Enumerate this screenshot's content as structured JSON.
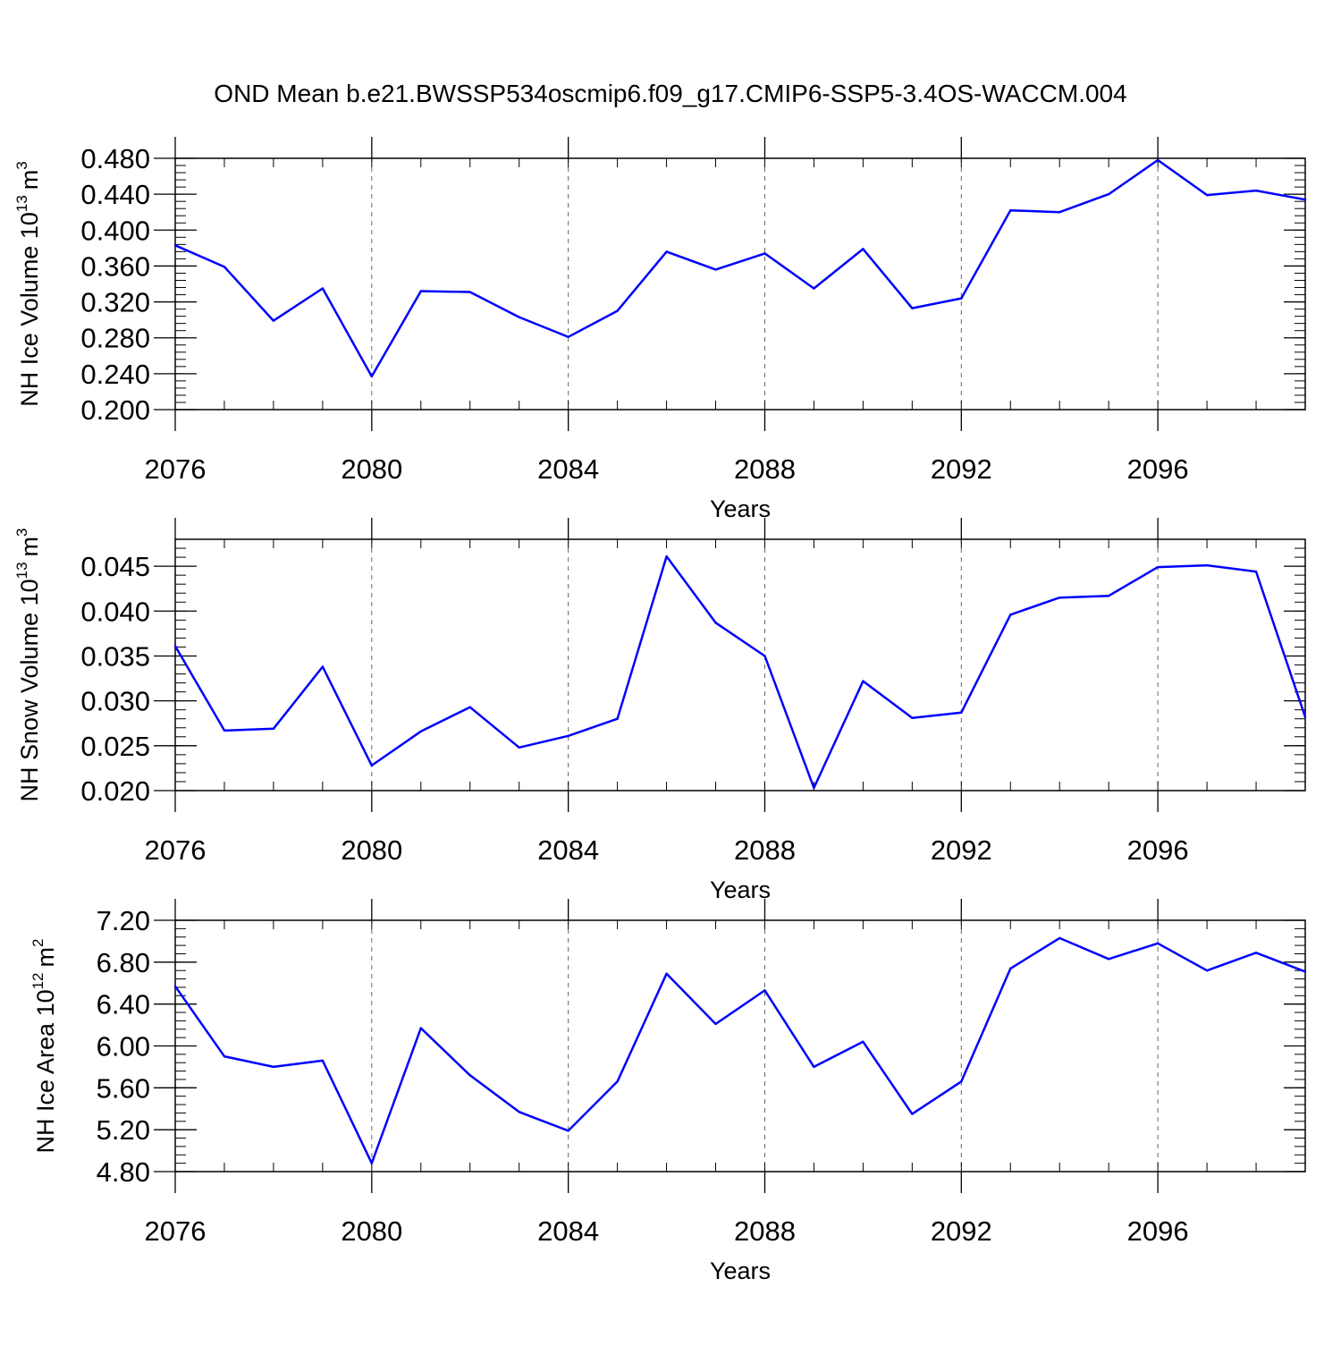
{
  "figure": {
    "title": "OND Mean b.e21.BWSSP534oscmip6.f09_g17.CMIP6-SSP5-3.4OS-WACCM.004"
  },
  "colors": {
    "line": "#0000ff",
    "axis": "#000000",
    "grid": "#666666"
  },
  "chart_data": [
    {
      "type": "line",
      "title": "",
      "xlabel": "Years",
      "ylabel_text": "NH Ice Volume 10",
      "ylabel_sup": "13",
      "ylabel_unit": "m",
      "ylabel_unit_sup": "3",
      "xlim": [
        2076,
        2099
      ],
      "ylim": [
        0.2,
        0.48
      ],
      "yticks": [
        0.2,
        0.24,
        0.28,
        0.32,
        0.36,
        0.4,
        0.44,
        0.48
      ],
      "ytick_labels": [
        "0.200",
        "0.240",
        "0.280",
        "0.320",
        "0.360",
        "0.400",
        "0.440",
        "0.480"
      ],
      "xticks": [
        2076,
        2080,
        2084,
        2088,
        2092,
        2096
      ],
      "xtick_labels": [
        "2076",
        "2080",
        "2084",
        "2088",
        "2092",
        "2096"
      ],
      "grid": "vertical dashed at major x ticks",
      "x": [
        2076,
        2077,
        2078,
        2079,
        2080,
        2081,
        2082,
        2083,
        2084,
        2085,
        2086,
        2087,
        2088,
        2089,
        2090,
        2091,
        2092,
        2093,
        2094,
        2095,
        2096,
        2097,
        2098,
        2099
      ],
      "values": [
        0.383,
        0.359,
        0.299,
        0.335,
        0.237,
        0.332,
        0.331,
        0.303,
        0.281,
        0.31,
        0.376,
        0.356,
        0.374,
        0.335,
        0.379,
        0.313,
        0.324,
        0.422,
        0.42,
        0.44,
        0.478,
        0.439,
        0.444,
        0.434
      ]
    },
    {
      "type": "line",
      "title": "",
      "xlabel": "Years",
      "ylabel_text": "NH Snow Volume 10",
      "ylabel_sup": "13",
      "ylabel_unit": "m",
      "ylabel_unit_sup": "3",
      "xlim": [
        2076,
        2099
      ],
      "ylim": [
        0.02,
        0.048
      ],
      "yticks": [
        0.02,
        0.025,
        0.03,
        0.035,
        0.04,
        0.045
      ],
      "ytick_labels": [
        "0.020",
        "0.025",
        "0.030",
        "0.035",
        "0.040",
        "0.045"
      ],
      "xticks": [
        2076,
        2080,
        2084,
        2088,
        2092,
        2096
      ],
      "xtick_labels": [
        "2076",
        "2080",
        "2084",
        "2088",
        "2092",
        "2096"
      ],
      "grid": "vertical dashed at major x ticks",
      "x": [
        2076,
        2077,
        2078,
        2079,
        2080,
        2081,
        2082,
        2083,
        2084,
        2085,
        2086,
        2087,
        2088,
        2089,
        2090,
        2091,
        2092,
        2093,
        2094,
        2095,
        2096,
        2097,
        2098,
        2099
      ],
      "values": [
        0.0361,
        0.0267,
        0.0269,
        0.0338,
        0.0228,
        0.0266,
        0.0293,
        0.0248,
        0.0261,
        0.028,
        0.0461,
        0.0387,
        0.035,
        0.0203,
        0.0322,
        0.0281,
        0.0287,
        0.0396,
        0.0415,
        0.0417,
        0.0449,
        0.0451,
        0.0444,
        0.0282
      ]
    },
    {
      "type": "line",
      "title": "",
      "xlabel": "Years",
      "ylabel_text": "NH Ice Area 10",
      "ylabel_sup": "12",
      "ylabel_unit": "m",
      "ylabel_unit_sup": "2",
      "xlim": [
        2076,
        2099
      ],
      "ylim": [
        4.8,
        7.2
      ],
      "yticks": [
        4.8,
        5.2,
        5.6,
        6.0,
        6.4,
        6.8,
        7.2
      ],
      "ytick_labels": [
        "4.80",
        "5.20",
        "5.60",
        "6.00",
        "6.40",
        "6.80",
        "7.20"
      ],
      "xticks": [
        2076,
        2080,
        2084,
        2088,
        2092,
        2096
      ],
      "xtick_labels": [
        "2076",
        "2080",
        "2084",
        "2088",
        "2092",
        "2096"
      ],
      "grid": "vertical dashed at major x ticks",
      "x": [
        2076,
        2077,
        2078,
        2079,
        2080,
        2081,
        2082,
        2083,
        2084,
        2085,
        2086,
        2087,
        2088,
        2089,
        2090,
        2091,
        2092,
        2093,
        2094,
        2095,
        2096,
        2097,
        2098,
        2099
      ],
      "values": [
        6.57,
        5.9,
        5.8,
        5.86,
        4.88,
        6.17,
        5.72,
        5.37,
        5.19,
        5.66,
        6.69,
        6.21,
        6.53,
        5.8,
        6.04,
        5.35,
        5.66,
        6.74,
        7.03,
        6.83,
        6.98,
        6.72,
        6.89,
        6.71
      ]
    }
  ]
}
